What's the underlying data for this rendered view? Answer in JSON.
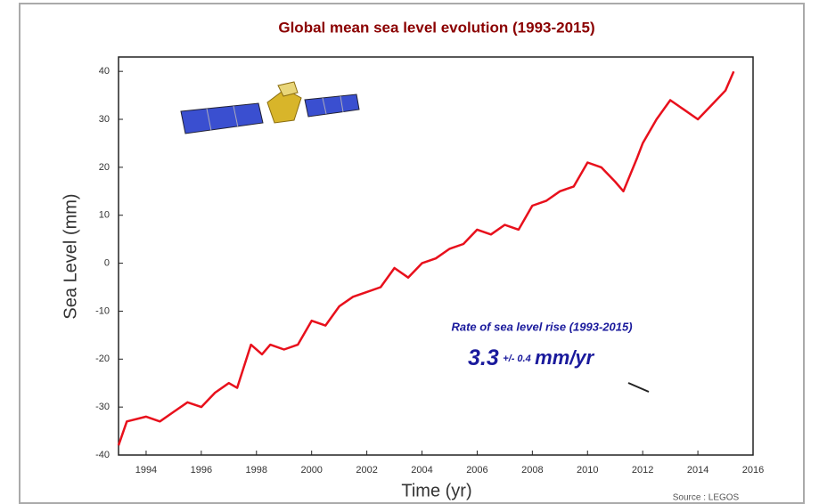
{
  "chart_data": {
    "type": "line",
    "title": "Global mean sea level evolution  (1993-2015)",
    "x_label": "Time (yr)",
    "y_label": "Sea Level (mm)",
    "source": "Source : LEGOS",
    "annotation": {
      "text": "Rate of sea level rise (1993-2015)",
      "rate": "3.3",
      "uncertainty": "+/- 0.4",
      "unit": "mm/yr"
    },
    "x": [
      1993.0,
      1993.3,
      1994.0,
      1994.5,
      1995.0,
      1995.5,
      1996.0,
      1996.5,
      1997.0,
      1997.3,
      1997.8,
      1998.2,
      1998.5,
      1999.0,
      1999.5,
      2000.0,
      2000.5,
      2001.0,
      2001.5,
      2002.0,
      2002.5,
      2003.0,
      2003.5,
      2004.0,
      2004.5,
      2005.0,
      2005.5,
      2006.0,
      2006.5,
      2007.0,
      2007.5,
      2008.0,
      2008.5,
      2009.0,
      2009.5,
      2010.0,
      2010.5,
      2011.0,
      2011.3,
      2011.8,
      2012.0,
      2012.5,
      2013.0,
      2013.5,
      2014.0,
      2014.5,
      2015.0,
      2015.3
    ],
    "series": [
      {
        "name": "Sea level",
        "color": "#e8101c",
        "values": [
          -38,
          -33,
          -32,
          -33,
          -31,
          -29,
          -30,
          -27,
          -25,
          -26,
          -17,
          -19,
          -17,
          -18,
          -17,
          -12,
          -13,
          -9,
          -7,
          -6,
          -5,
          -1,
          -3,
          0,
          1,
          3,
          4,
          7,
          6,
          8,
          7,
          12,
          13,
          15,
          16,
          21,
          20,
          17,
          15,
          22,
          25,
          30,
          34,
          32,
          30,
          33,
          36,
          40
        ]
      }
    ],
    "xlim": [
      1993,
      2016
    ],
    "xticks": [
      1994,
      1996,
      1998,
      2000,
      2002,
      2004,
      2006,
      2008,
      2010,
      2012,
      2014,
      2016
    ],
    "ylim": [
      -40,
      43
    ],
    "yticks": [
      40,
      30,
      20,
      10,
      0,
      -10,
      -20,
      -30,
      -40
    ],
    "grid": false
  }
}
